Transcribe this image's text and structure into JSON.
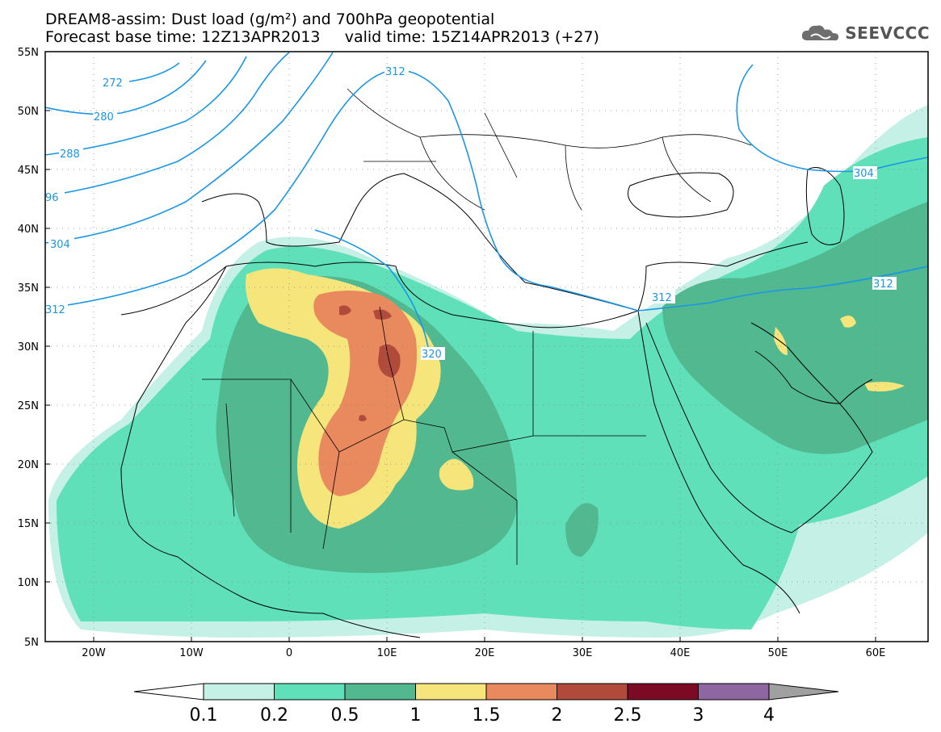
{
  "title": {
    "line1": "DREAM8-assim: Dust load (g/m²) and 700hPa geopotential",
    "line2": "Forecast base time: 12Z13APR2013     valid time: 15Z14APR2013 (+27)"
  },
  "logo": {
    "text": "SEEVCCC",
    "icon": "cloud-icon"
  },
  "axes": {
    "lat_labels": [
      "55N",
      "50N",
      "45N",
      "40N",
      "35N",
      "30N",
      "25N",
      "20N",
      "15N",
      "10N",
      "5N"
    ],
    "lon_labels": [
      "20W",
      "10W",
      "0",
      "10E",
      "20E",
      "30E",
      "40E",
      "50E",
      "60E"
    ]
  },
  "contour_labels": [
    "272",
    "280",
    "288",
    "96",
    "304",
    "312",
    "312",
    "320",
    "312",
    "312",
    "304"
  ],
  "colorbar": {
    "ticks": [
      "0.1",
      "0.2",
      "0.5",
      "1",
      "1.5",
      "2",
      "2.5",
      "3",
      "4"
    ],
    "colors": [
      "#c4f0e6",
      "#5fe0b8",
      "#52b890",
      "#f5e57a",
      "#e9895e",
      "#b04b3c",
      "#7d0a25",
      "#8e66a0"
    ],
    "under_color": "#ffffff",
    "over_color": "#a0a0a0"
  },
  "contour_color": "#1a96e6"
}
